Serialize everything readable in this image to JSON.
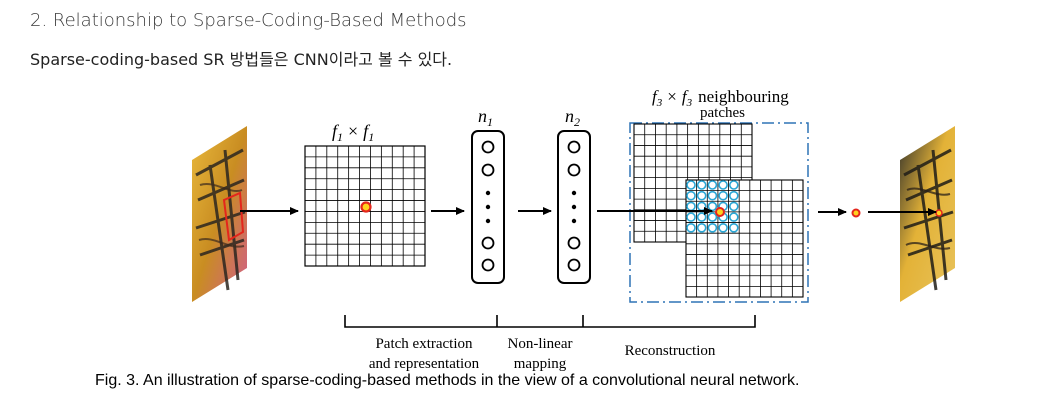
{
  "section": {
    "heading": "2. Relationship to Sparse-Coding-Based Methods",
    "paragraph": "Sparse-coding-based SR 방법들은 CNN이라고 볼 수 있다."
  },
  "figure": {
    "labels": {
      "f1": "f",
      "f1_sub": "1",
      "f1_times": "×",
      "n1": "n",
      "n1_sub": "1",
      "n2": "n",
      "n2_sub": "2",
      "f3": "f",
      "f3_sub": "3",
      "f3_times": "×",
      "neighbouring": "neighbouring",
      "patches": "patches"
    },
    "stages": {
      "patch_line1": "Patch extraction",
      "patch_line2": "and representation",
      "nonlinear_line1": "Non-linear",
      "nonlinear_line2": "mapping",
      "reconstruction": "Reconstruction"
    },
    "caption": "Fig. 3.  An illustration of sparse-coding-based methods in the view of a convolutional neural network.",
    "colors": {
      "highlight_red": "#e4261c",
      "highlight_yellow": "#ffd21f",
      "patch_cyan": "#2aa7d6",
      "dashed_blue": "#2f73b5"
    }
  }
}
